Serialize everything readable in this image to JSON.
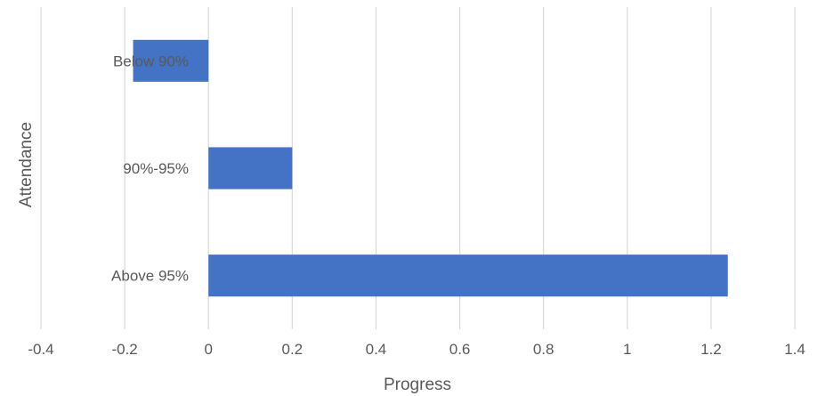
{
  "chart_data": {
    "type": "bar",
    "orientation": "horizontal",
    "categories": [
      "Below 90%",
      "90%-95%",
      "Above 95%"
    ],
    "values": [
      -0.18,
      0.2,
      1.24
    ],
    "xlabel": "Progress",
    "ylabel": "Attendance",
    "xlim": [
      -0.4,
      1.4
    ],
    "xticks": [
      "-0.4",
      "-0.2",
      "0",
      "0.2",
      "0.4",
      "0.6",
      "0.8",
      "1",
      "1.2",
      "1.4"
    ],
    "grid": "vertical",
    "legend": "none",
    "bar_color": "#4472C4",
    "grid_color": "#D9D9D9",
    "text_color": "#595959"
  }
}
